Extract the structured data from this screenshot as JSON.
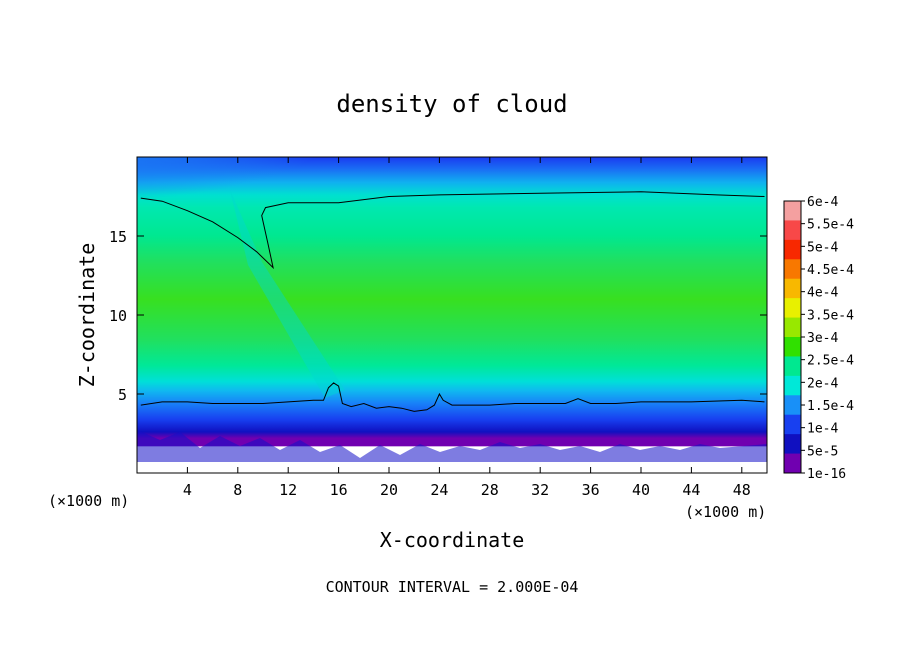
{
  "chart_data": {
    "type": "heatmap",
    "title": "density of cloud",
    "xlabel": "X-coordinate",
    "ylabel": "Z-coordinate",
    "x_unit_left": "(×1000 m)",
    "x_unit_right": "(×1000 m)",
    "footer": "CONTOUR INTERVAL = 2.000E-04",
    "xlim": [
      0,
      50
    ],
    "ylim": [
      0,
      20
    ],
    "x_ticks": [
      4,
      8,
      12,
      16,
      20,
      24,
      28,
      32,
      36,
      40,
      44,
      48
    ],
    "y_ticks": [
      5,
      10,
      15
    ],
    "colorbar": {
      "labels": [
        "6e-4",
        "5.5e-4",
        "5e-4",
        "4.5e-4",
        "4e-4",
        "3.5e-4",
        "3e-4",
        "2.5e-4",
        "2e-4",
        "1.5e-4",
        "1e-4",
        "5e-5",
        "1e-16"
      ],
      "values": [
        0.0006,
        0.00055,
        0.0005,
        0.00045,
        0.0004,
        0.00035,
        0.0003,
        0.00025,
        0.0002,
        0.00015,
        0.0001,
        5e-05,
        1e-16
      ],
      "colors": [
        "#f4a0a0",
        "#f84848",
        "#f82800",
        "#f87800",
        "#f8b800",
        "#e8f000",
        "#98e800",
        "#30e000",
        "#00e890",
        "#00e8d8",
        "#1890f8",
        "#1840f0",
        "#1010c0",
        "#7000b0"
      ]
    },
    "contour_lines": [
      {
        "level": 0.0002,
        "points": [
          [
            0.3,
            17.4
          ],
          [
            2,
            17.2
          ],
          [
            4,
            16.6
          ],
          [
            6,
            15.9
          ],
          [
            8,
            14.9
          ],
          [
            9.5,
            14.0
          ],
          [
            10.8,
            13.0
          ],
          [
            10.4,
            14.5
          ],
          [
            9.9,
            16.3
          ],
          [
            10.2,
            16.8
          ],
          [
            12,
            17.1
          ],
          [
            16,
            17.1
          ],
          [
            20,
            17.5
          ],
          [
            24,
            17.6
          ],
          [
            32,
            17.7
          ],
          [
            40,
            17.8
          ],
          [
            46,
            17.6
          ],
          [
            49.8,
            17.5
          ]
        ]
      },
      {
        "level": 0.0002,
        "points": [
          [
            0.3,
            4.3
          ],
          [
            2,
            4.5
          ],
          [
            4,
            4.5
          ],
          [
            6,
            4.4
          ],
          [
            8,
            4.4
          ],
          [
            10,
            4.4
          ],
          [
            12,
            4.5
          ],
          [
            14,
            4.6
          ],
          [
            14.8,
            4.6
          ],
          [
            15.2,
            5.4
          ],
          [
            15.6,
            5.7
          ],
          [
            16.0,
            5.5
          ],
          [
            16.3,
            4.4
          ],
          [
            17,
            4.2
          ],
          [
            18,
            4.4
          ],
          [
            19,
            4.1
          ],
          [
            20,
            4.2
          ],
          [
            21,
            4.1
          ],
          [
            22,
            3.9
          ],
          [
            23,
            4.0
          ],
          [
            23.6,
            4.3
          ],
          [
            24,
            5.0
          ],
          [
            24.3,
            4.6
          ],
          [
            25,
            4.3
          ],
          [
            28,
            4.3
          ],
          [
            30,
            4.4
          ],
          [
            32,
            4.4
          ],
          [
            34,
            4.4
          ],
          [
            35,
            4.7
          ],
          [
            36,
            4.4
          ],
          [
            38,
            4.4
          ],
          [
            40,
            4.5
          ],
          [
            44,
            4.5
          ],
          [
            48,
            4.6
          ],
          [
            49.8,
            4.5
          ]
        ]
      }
    ]
  }
}
